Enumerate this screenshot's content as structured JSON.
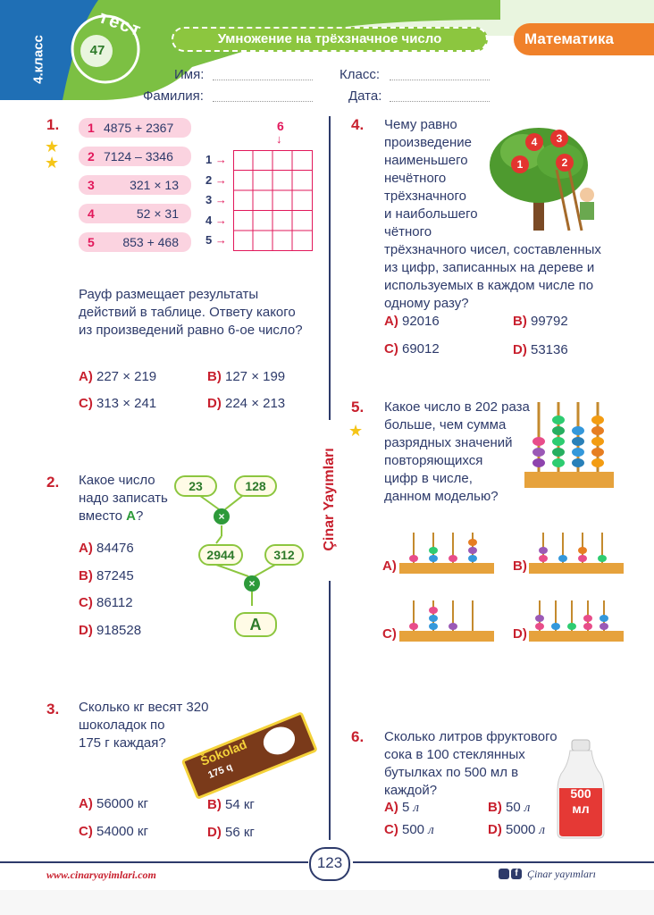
{
  "header": {
    "grade": "4.класс",
    "test_word": "тест",
    "test_number": "47",
    "topic": "Умножение на трёхзначное число",
    "subject": "Математика",
    "fields": {
      "name": "Имя:",
      "class": "Класс:",
      "surname": "Фамилия:",
      "date": "Дата:"
    }
  },
  "q1": {
    "number": "1.",
    "items": [
      {
        "n": "1",
        "expr": "4875 + 2367"
      },
      {
        "n": "2",
        "expr": "7124 – 3346"
      },
      {
        "n": "3",
        "expr": "321 × 13"
      },
      {
        "n": "4",
        "expr": "52 × 31"
      },
      {
        "n": "5",
        "expr": "853 + 468"
      }
    ],
    "grid_marker": "6",
    "row_labels": [
      "1",
      "2",
      "3",
      "4",
      "5"
    ],
    "text": [
      "Рауф размещает результаты",
      "действий в таблице. Ответу какого",
      "из произведений равно 6-ое число?"
    ],
    "options": [
      {
        "l": "A)",
        "v": "227 × 219"
      },
      {
        "l": "B)",
        "v": "127 × 199"
      },
      {
        "l": "C)",
        "v": "313 × 241"
      },
      {
        "l": "D)",
        "v": "224 × 213"
      }
    ]
  },
  "q2": {
    "number": "2.",
    "text": [
      "Какое число",
      "надо записать",
      "вместо"
    ],
    "text_end": "?",
    "symbol": "A",
    "bubbles": [
      "23",
      "128",
      "2944",
      "312"
    ],
    "options": [
      {
        "l": "A)",
        "v": "84476"
      },
      {
        "l": "B)",
        "v": "87245"
      },
      {
        "l": "C)",
        "v": "86112"
      },
      {
        "l": "D)",
        "v": "918528"
      }
    ]
  },
  "q3": {
    "number": "3.",
    "text": [
      "Сколько кг весят 320",
      "шоколадок по",
      "175 г каждая?"
    ],
    "choc_brand": "Šokolad",
    "choc_weight": "175 q",
    "options": [
      {
        "l": "A)",
        "v": "56000 кг"
      },
      {
        "l": "B)",
        "v": "54 кг"
      },
      {
        "l": "C)",
        "v": "54000 кг"
      },
      {
        "l": "D)",
        "v": "56 кг"
      }
    ]
  },
  "q4": {
    "number": "4.",
    "text": [
      "Чему равно",
      "произведение",
      "наименьшего",
      "нечётного",
      "трёхзначного",
      "и наибольшего",
      "чётного",
      "трёхзначного чисел, составленных",
      "из цифр, записанных на дереве и",
      "используемых в каждом числе по",
      "одному разу?"
    ],
    "apples": [
      "4",
      "3",
      "1",
      "2"
    ],
    "options": [
      {
        "l": "A)",
        "v": "92016"
      },
      {
        "l": "B)",
        "v": "99792"
      },
      {
        "l": "C)",
        "v": "69012"
      },
      {
        "l": "D)",
        "v": "53136"
      }
    ]
  },
  "q5": {
    "number": "5.",
    "text": [
      "Какое число в 202 раза",
      "больше, чем сумма",
      "разрядных значений",
      "повторяющихся",
      "цифр в числе,",
      "данном моделью?"
    ],
    "option_letters": [
      "A)",
      "B)",
      "C)",
      "D)"
    ]
  },
  "q6": {
    "number": "6.",
    "text": [
      "Сколько литров фруктового",
      "сока в 100 стеклянных",
      "бутылках по 500 мл в",
      "каждой?"
    ],
    "bottle_value": "500",
    "bottle_unit": "мл",
    "options": [
      {
        "l": "A)",
        "v": "5"
      },
      {
        "l": "B)",
        "v": "50"
      },
      {
        "l": "C)",
        "v": "500"
      },
      {
        "l": "D)",
        "v": "5000"
      }
    ],
    "unit_symbol": "л"
  },
  "sidebar_brand": "Çinar Yayımları",
  "footer": {
    "website": "www.cinaryayimlari.com",
    "page": "123",
    "social": "Çinar yayımları"
  },
  "colors": {
    "header_green": "#7cc043",
    "orange": "#f0812a",
    "red_accent": "#c8202e",
    "text_blue": "#2d3a6a",
    "pink_pill": "#fbd3e0"
  }
}
